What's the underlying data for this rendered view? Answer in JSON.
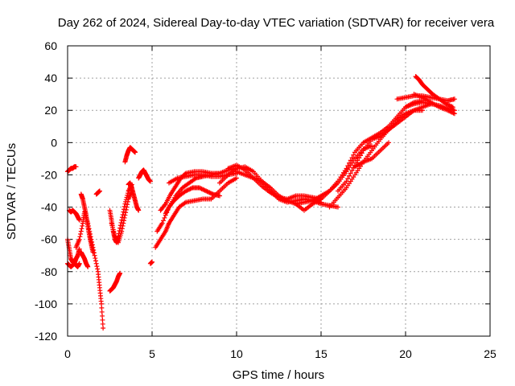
{
  "chart_data": {
    "type": "scatter",
    "title": "Day 262 of 2024, Sidereal Day-to-day VTEC variation (SDTVAR) for receiver vera",
    "xlabel": "GPS time / hours",
    "ylabel": "SDTVAR / TECUs",
    "xlim": [
      0,
      25
    ],
    "ylim": [
      -120,
      60
    ],
    "xticks": [
      0,
      5,
      10,
      15,
      20,
      25
    ],
    "yticks": [
      -120,
      -100,
      -80,
      -60,
      -40,
      -20,
      0,
      20,
      40,
      60
    ],
    "xtick_labels": [
      "0",
      "5",
      "10",
      "15",
      "20",
      "25"
    ],
    "ytick_labels": [
      "-120",
      "-100",
      "-80",
      "-60",
      "-40",
      "-20",
      "0",
      "20",
      "40",
      "60"
    ],
    "grid": true,
    "marker": "+",
    "color": "#ff0000",
    "series": [
      {
        "x": [
          0.0,
          0.1,
          0.2,
          0.3,
          0.4,
          0.5
        ],
        "y": [
          -18,
          -17,
          -16,
          -16,
          -15,
          -15
        ]
      },
      {
        "x": [
          0.0,
          0.1,
          0.2,
          0.3,
          0.4,
          0.5,
          0.6,
          0.7
        ],
        "y": [
          -60,
          -66,
          -72,
          -74,
          -75,
          -76,
          -77,
          -75
        ]
      },
      {
        "x": [
          0.0,
          0.1,
          0.2,
          0.3,
          0.4,
          0.5,
          0.6,
          0.7
        ],
        "y": [
          -75,
          -76,
          -77,
          -76,
          -75,
          -72,
          -70,
          -66
        ]
      },
      {
        "x": [
          0.1,
          0.2,
          0.3,
          0.4,
          0.5,
          0.6,
          0.7
        ],
        "y": [
          -42,
          -43,
          -42,
          -43,
          -44,
          -46,
          -48
        ]
      },
      {
        "x": [
          0.5,
          0.7,
          0.9,
          1.0,
          1.2,
          1.4,
          1.6,
          1.8,
          1.9,
          2.0,
          2.1
        ],
        "y": [
          -65,
          -60,
          -50,
          -43,
          -50,
          -60,
          -70,
          -80,
          -90,
          -100,
          -115
        ]
      },
      {
        "x": [
          0.8,
          0.9,
          1.0,
          1.1,
          1.2,
          1.3,
          1.4,
          1.5
        ],
        "y": [
          -32,
          -35,
          -40,
          -45,
          -52,
          -58,
          -63,
          -68
        ]
      },
      {
        "x": [
          0.8,
          0.9,
          1.0,
          1.1,
          1.2
        ],
        "y": [
          -68,
          -70,
          -72,
          -75,
          -77
        ]
      },
      {
        "x": [
          1.7,
          1.8,
          1.9
        ],
        "y": [
          -32,
          -31,
          -30
        ]
      },
      {
        "x": [
          2.5,
          2.6,
          2.7,
          2.8,
          2.9,
          3.0,
          3.1
        ],
        "y": [
          -92,
          -91,
          -90,
          -88,
          -86,
          -83,
          -81
        ]
      },
      {
        "x": [
          2.5,
          2.6,
          2.7,
          2.8,
          2.9,
          3.0,
          3.2,
          3.4,
          3.6,
          3.8
        ],
        "y": [
          -42,
          -48,
          -55,
          -60,
          -62,
          -58,
          -48,
          -38,
          -30,
          -26
        ]
      },
      {
        "x": [
          2.6,
          2.8,
          3.0,
          3.2,
          3.4,
          3.6,
          3.8
        ],
        "y": [
          -50,
          -58,
          -62,
          -55,
          -45,
          -35,
          -30
        ]
      },
      {
        "x": [
          3.4,
          3.5,
          3.6,
          3.7,
          3.8,
          3.9,
          4.0
        ],
        "y": [
          -12,
          -8,
          -5,
          -3,
          -4,
          -5,
          -6
        ]
      },
      {
        "x": [
          3.6,
          3.7,
          3.8,
          3.9,
          4.0,
          4.1,
          4.2
        ],
        "y": [
          -26,
          -25,
          -28,
          -32,
          -36,
          -40,
          -42
        ]
      },
      {
        "x": [
          4.2,
          4.3,
          4.4,
          4.5,
          4.6,
          4.7,
          4.8,
          4.9
        ],
        "y": [
          -22,
          -20,
          -18,
          -17,
          -19,
          -21,
          -23,
          -24
        ]
      },
      {
        "x": [
          4.9,
          5.0
        ],
        "y": [
          -75,
          -74
        ]
      },
      {
        "x": [
          5.2,
          5.5,
          5.8,
          6.0,
          6.3,
          6.6,
          7.0,
          7.5,
          8.0,
          8.5,
          9.0,
          9.5,
          10.0
        ],
        "y": [
          -65,
          -60,
          -55,
          -50,
          -45,
          -40,
          -37,
          -36,
          -35,
          -35,
          -30,
          -25,
          -22
        ]
      },
      {
        "x": [
          5.3,
          5.6,
          6.0,
          6.4,
          6.8,
          7.2,
          7.6,
          8.0,
          8.5,
          9.0
        ],
        "y": [
          -55,
          -50,
          -40,
          -33,
          -28,
          -25,
          -22,
          -21,
          -20,
          -19
        ]
      },
      {
        "x": [
          5.5,
          5.8,
          6.1,
          6.4,
          6.7,
          7.0,
          7.5,
          8.0,
          8.5,
          9.0,
          9.5,
          10.0
        ],
        "y": [
          -42,
          -38,
          -32,
          -27,
          -22,
          -19,
          -18,
          -18,
          -19,
          -19,
          -17,
          -16
        ]
      },
      {
        "x": [
          5.8,
          6.0,
          6.3,
          6.6,
          7.0,
          7.4,
          7.8,
          8.2,
          8.6,
          9.0
        ],
        "y": [
          -44,
          -40,
          -36,
          -33,
          -30,
          -28,
          -28,
          -30,
          -32,
          -33
        ]
      },
      {
        "x": [
          6.0,
          6.5,
          7.0,
          7.5,
          8.0,
          8.5,
          9.0,
          9.5,
          10.0
        ],
        "y": [
          -25,
          -22,
          -21,
          -20,
          -20,
          -21,
          -21,
          -20,
          -19
        ]
      },
      {
        "x": [
          9.0,
          9.5,
          10.0,
          10.5,
          11.0,
          11.5,
          12.0,
          12.5,
          13.0,
          13.5,
          14.0,
          14.5,
          15.0
        ],
        "y": [
          -25,
          -20,
          -16,
          -15,
          -18,
          -24,
          -30,
          -35,
          -37,
          -36,
          -35,
          -36,
          -37
        ]
      },
      {
        "x": [
          9.5,
          10.0,
          10.5,
          11.0,
          11.5,
          12.0,
          12.5,
          13.0,
          13.5,
          14.0,
          14.5,
          15.0
        ],
        "y": [
          -16,
          -14,
          -17,
          -22,
          -27,
          -31,
          -34,
          -35,
          -33,
          -33,
          -34,
          -35
        ]
      },
      {
        "x": [
          10.0,
          10.5,
          11.0,
          11.5,
          12.0,
          12.5,
          13.0,
          13.5,
          14.0,
          14.5,
          15.0,
          15.5,
          16.0
        ],
        "y": [
          -18,
          -20,
          -22,
          -24,
          -28,
          -33,
          -36,
          -38,
          -37,
          -36,
          -38,
          -39,
          -40
        ]
      },
      {
        "x": [
          13.5,
          14.0,
          14.5,
          15.0,
          15.5,
          16.0,
          16.5,
          17.0,
          17.5,
          18.0
        ],
        "y": [
          -38,
          -42,
          -38,
          -35,
          -30,
          -25,
          -18,
          -10,
          -4,
          -2
        ]
      },
      {
        "x": [
          14.5,
          15.0,
          15.5,
          16.0,
          16.5,
          17.0,
          17.5,
          18.0,
          18.5,
          19.0,
          19.5,
          20.0,
          20.5,
          21.0
        ],
        "y": [
          -36,
          -33,
          -30,
          -24,
          -16,
          -6,
          0,
          3,
          6,
          10,
          16,
          22,
          25,
          26
        ]
      },
      {
        "x": [
          15.5,
          16.0,
          16.5,
          17.0,
          17.5,
          18.0,
          18.5,
          19.0,
          19.5,
          20.0,
          20.5,
          21.0,
          21.5
        ],
        "y": [
          -40,
          -34,
          -28,
          -20,
          -12,
          -5,
          2,
          8,
          14,
          18,
          20,
          22,
          24
        ]
      },
      {
        "x": [
          16.0,
          16.5,
          17.0,
          17.5,
          18.0,
          18.5,
          19.0,
          19.5,
          20.0,
          20.5,
          21.0
        ],
        "y": [
          -30,
          -24,
          -14,
          -5,
          2,
          4,
          8,
          12,
          16,
          20,
          20
        ]
      },
      {
        "x": [
          17.0,
          17.5,
          18.0,
          18.5,
          19.0
        ],
        "y": [
          -15,
          -12,
          -10,
          -5,
          0
        ]
      },
      {
        "x": [
          19.5,
          20.0,
          20.5,
          21.0,
          21.5,
          22.0,
          22.5,
          22.9
        ],
        "y": [
          27,
          28,
          29,
          29,
          28,
          27,
          26,
          27
        ]
      },
      {
        "x": [
          20.6,
          20.8,
          21.0,
          21.3,
          21.6,
          22.0,
          22.4,
          22.8
        ],
        "y": [
          41,
          39,
          36,
          33,
          30,
          27,
          24,
          22
        ]
      },
      {
        "x": [
          20.5,
          21.0,
          21.5,
          22.0,
          22.5,
          22.9
        ],
        "y": [
          30,
          28,
          25,
          22,
          20,
          18
        ]
      },
      {
        "x": [
          20.0,
          20.5,
          21.0,
          21.5,
          22.0,
          22.5,
          22.9
        ],
        "y": [
          22,
          24,
          25,
          24,
          23,
          21,
          20
        ]
      }
    ]
  }
}
